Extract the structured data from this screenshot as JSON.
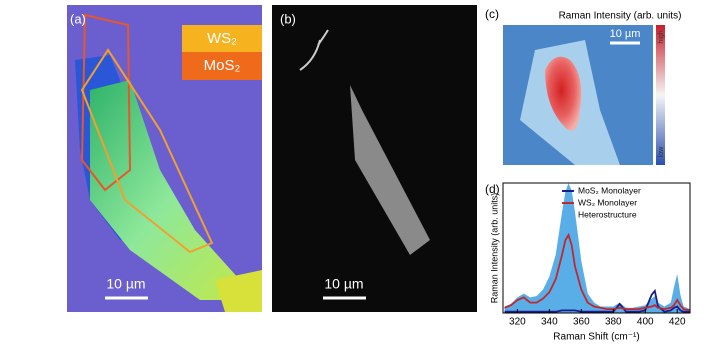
{
  "panel_a": {
    "label": "(a)",
    "legend": [
      "WS₂",
      "MoS₂"
    ],
    "scale_bar": "10 µm"
  },
  "panel_b": {
    "label": "(b)",
    "scale_bar": "10 µm"
  },
  "panel_c": {
    "label": "(c)",
    "title": "Raman Intensity (arb. units)",
    "scale_bar": "10 µm",
    "colorbar_high": "high",
    "colorbar_low": "low"
  },
  "chart_data": {
    "type": "line",
    "label": "(d)",
    "xlabel": "Raman Shift (cm⁻¹)",
    "ylabel": "Raman Intensity (arb. units)",
    "x": [
      312,
      316,
      320,
      324,
      328,
      332,
      336,
      340,
      344,
      348,
      350,
      352,
      354,
      356,
      360,
      364,
      368,
      372,
      376,
      380,
      384,
      388,
      392,
      396,
      400,
      404,
      406,
      408,
      412,
      416,
      418,
      420,
      422,
      424,
      428
    ],
    "xlim": [
      311,
      428
    ],
    "xticks": [
      320,
      340,
      360,
      380,
      400,
      420
    ],
    "ylim": [
      0,
      100
    ],
    "legend": "upper right",
    "series": [
      {
        "name": "Heterostructure",
        "color": "#5aaee8",
        "style": "area",
        "values": [
          5,
          7,
          12,
          15,
          12,
          13,
          18,
          28,
          45,
          78,
          93,
          100,
          94,
          78,
          40,
          15,
          8,
          5,
          5,
          5,
          8,
          4,
          4,
          5,
          6,
          11,
          13,
          8,
          5,
          8,
          20,
          30,
          14,
          5,
          3
        ]
      },
      {
        "name": "MoS₂ Monolayer",
        "color": "#1c1c8a",
        "style": "line",
        "values": [
          1,
          1,
          1,
          1,
          1,
          1,
          1,
          1,
          1,
          2,
          2,
          2,
          2,
          2,
          1,
          1,
          1,
          1,
          1,
          1,
          7,
          1,
          1,
          1,
          2,
          14,
          17,
          5,
          1,
          2,
          4,
          5,
          2,
          1,
          1
        ]
      },
      {
        "name": "WS₂ Monolayer",
        "color": "#c0282d",
        "style": "line",
        "values": [
          4,
          6,
          10,
          12,
          8,
          8,
          11,
          16,
          26,
          45,
          56,
          60,
          52,
          36,
          18,
          8,
          5,
          4,
          3,
          3,
          4,
          3,
          3,
          3,
          4,
          5,
          6,
          4,
          3,
          4,
          6,
          10,
          6,
          3,
          2
        ]
      }
    ]
  }
}
